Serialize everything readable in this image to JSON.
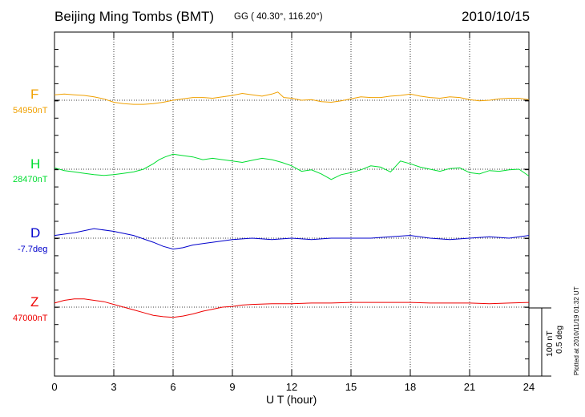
{
  "header": {
    "station": "Beijing Ming Tombs (BMT)",
    "coordinates": "GG ( 40.30°, 116.20°)",
    "date": "2010/10/15"
  },
  "footer": {
    "plotted": "Plotted at 2010/11/19 01:32 UT"
  },
  "scale": {
    "nt": "100 nT",
    "deg": "0.5 deg"
  },
  "chart_data": {
    "type": "line",
    "title": "Beijing Ming Tombs (BMT)",
    "xlabel": "U T (hour)",
    "ylabel": "",
    "xlim": [
      0,
      24
    ],
    "xticks": [
      "0",
      "3",
      "6",
      "9",
      "12",
      "15",
      "18",
      "21",
      "24"
    ],
    "grid": "dotted vertical lines every 3 h, dotted baseline per component",
    "vertical_scale": "100 nT / 0.5 deg per scale bar",
    "series": [
      {
        "name": "F",
        "baseline_label": "54950nT",
        "color": "#f0a000",
        "unit": "nT",
        "baseline": 54950,
        "x": [
          0,
          0.5,
          1,
          1.5,
          2,
          2.5,
          3,
          3.5,
          4,
          4.5,
          5,
          5.5,
          6,
          6.5,
          7,
          7.5,
          8,
          8.5,
          9,
          9.5,
          10,
          10.5,
          11,
          11.3,
          11.6,
          12,
          12.5,
          13,
          13.5,
          14,
          14.5,
          15,
          15.5,
          16,
          16.5,
          17,
          17.5,
          18,
          18.5,
          19,
          19.5,
          20,
          20.5,
          21,
          21.5,
          22,
          22.5,
          23,
          23.5,
          24
        ],
        "values": [
          8,
          9,
          8,
          7,
          5,
          2,
          -3,
          -5,
          -6,
          -6,
          -5,
          -3,
          0,
          2,
          4,
          4,
          3,
          5,
          7,
          10,
          8,
          6,
          9,
          12,
          4,
          3,
          0,
          1,
          -2,
          -3,
          -1,
          2,
          5,
          4,
          4,
          6,
          7,
          9,
          6,
          4,
          3,
          5,
          4,
          1,
          -1,
          0,
          2,
          3,
          3,
          1
        ]
      },
      {
        "name": "H",
        "baseline_label": "28470nT",
        "color": "#00dd30",
        "unit": "nT",
        "baseline": 28470,
        "x": [
          0,
          0.5,
          1,
          1.5,
          2,
          2.5,
          3,
          3.5,
          4,
          4.5,
          5,
          5.3,
          5.6,
          6,
          6.5,
          7,
          7.5,
          8,
          8.5,
          9,
          9.5,
          10,
          10.5,
          11,
          11.5,
          12,
          12.5,
          13,
          13.5,
          14,
          14.5,
          15,
          15.5,
          16,
          16.5,
          17,
          17.5,
          18,
          18.5,
          19,
          19.5,
          20,
          20.5,
          21,
          21.5,
          22,
          22.5,
          23,
          23.5,
          24
        ],
        "values": [
          2,
          -2,
          -4,
          -6,
          -8,
          -9,
          -8,
          -6,
          -4,
          0,
          8,
          14,
          18,
          22,
          20,
          18,
          14,
          16,
          14,
          12,
          10,
          13,
          16,
          14,
          10,
          5,
          -3,
          -1,
          -7,
          -15,
          -8,
          -5,
          -1,
          5,
          3,
          -4,
          12,
          8,
          3,
          0,
          -3,
          1,
          2,
          -5,
          -7,
          -2,
          -3,
          -1,
          0,
          -10
        ]
      },
      {
        "name": "D",
        "baseline_label": "-7.7deg",
        "color": "#0000cc",
        "unit": "deg",
        "baseline": -7.7,
        "x": [
          0,
          1,
          2,
          3,
          4,
          5,
          5.5,
          6,
          6.5,
          7,
          8,
          9,
          10,
          11,
          12,
          13,
          14,
          15,
          16,
          17,
          18,
          19,
          20,
          21,
          22,
          23,
          24
        ],
        "values": [
          0.02,
          0.04,
          0.07,
          0.05,
          0.02,
          -0.03,
          -0.06,
          -0.08,
          -0.07,
          -0.05,
          -0.03,
          -0.01,
          0,
          -0.01,
          0,
          -0.01,
          0,
          0,
          0,
          0.01,
          0.02,
          0,
          -0.01,
          0,
          0.01,
          0,
          0.02
        ]
      },
      {
        "name": "Z",
        "baseline_label": "47000nT",
        "color": "#ee0000",
        "unit": "nT",
        "baseline": 47000,
        "x": [
          0,
          0.5,
          1,
          1.5,
          2,
          2.5,
          3,
          3.5,
          4,
          4.5,
          5,
          5.5,
          6,
          6.5,
          7,
          7.5,
          8,
          8.5,
          9,
          9.5,
          10,
          11,
          12,
          13,
          14,
          15,
          16,
          17,
          18,
          19,
          20,
          21,
          22,
          23,
          24
        ],
        "values": [
          6,
          10,
          12,
          12,
          10,
          8,
          4,
          0,
          -4,
          -8,
          -12,
          -14,
          -15,
          -13,
          -10,
          -6,
          -3,
          0,
          1,
          3,
          4,
          5,
          5,
          6,
          6,
          7,
          7,
          7,
          7,
          6,
          6,
          6,
          5,
          6,
          7
        ]
      }
    ]
  }
}
